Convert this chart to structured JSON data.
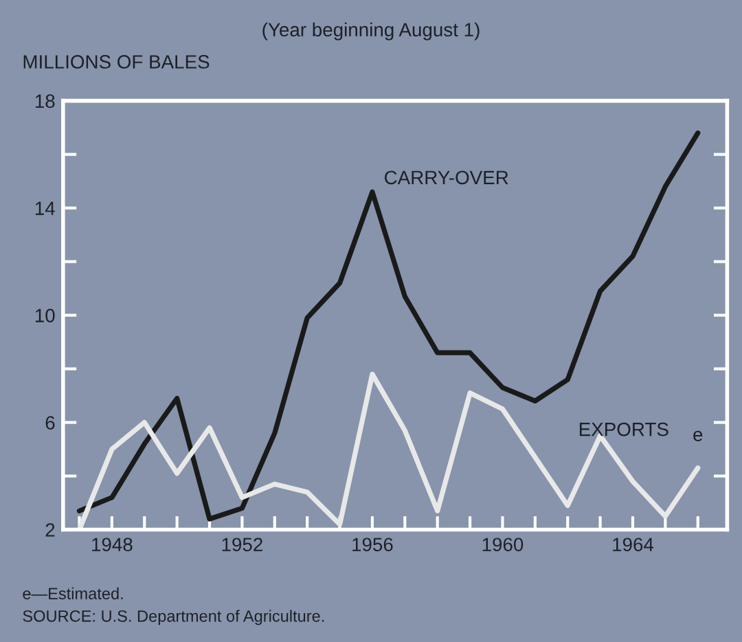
{
  "chart_data": {
    "type": "line",
    "title": "(Year beginning August 1)",
    "ylabel": "MILLIONS OF BALES",
    "x": [
      1947,
      1948,
      1949,
      1950,
      1951,
      1952,
      1953,
      1954,
      1955,
      1956,
      1957,
      1958,
      1959,
      1960,
      1961,
      1962,
      1963,
      1964,
      1965,
      1966
    ],
    "series": [
      {
        "name": "CARRY-OVER",
        "color": "#1a1a1a",
        "values": [
          2.7,
          3.2,
          5.2,
          6.9,
          2.4,
          2.8,
          5.6,
          9.9,
          11.2,
          14.6,
          10.7,
          8.6,
          8.6,
          7.3,
          6.8,
          7.6,
          10.9,
          12.2,
          14.8,
          16.8
        ]
      },
      {
        "name": "EXPORTS",
        "color": "#e8e8e8",
        "values": [
          2.0,
          5.0,
          6.0,
          4.1,
          5.8,
          3.2,
          3.7,
          3.4,
          2.2,
          7.8,
          5.7,
          2.7,
          7.1,
          6.5,
          4.7,
          2.9,
          5.5,
          3.8,
          2.5,
          4.3
        ]
      }
    ],
    "xlim": [
      1946.5,
      1966.9
    ],
    "ylim": [
      2,
      18
    ],
    "xticks": [
      {
        "value": 1947,
        "label": null
      },
      1948,
      {
        "value": 1949,
        "label": null
      },
      {
        "value": 1950,
        "label": null
      },
      {
        "value": 1951,
        "label": null
      },
      1952,
      {
        "value": 1953,
        "label": null
      },
      {
        "value": 1954,
        "label": null
      },
      {
        "value": 1955,
        "label": null
      },
      1956,
      {
        "value": 1957,
        "label": null
      },
      {
        "value": 1958,
        "label": null
      },
      {
        "value": 1959,
        "label": null
      },
      1960,
      {
        "value": 1961,
        "label": null
      },
      {
        "value": 1962,
        "label": null
      },
      {
        "value": 1963,
        "label": null
      },
      1964,
      {
        "value": 1965,
        "label": null
      },
      {
        "value": 1966,
        "label": null
      }
    ],
    "yticks": [
      2,
      {
        "value": 4,
        "label": null
      },
      6,
      {
        "value": 8,
        "label": null
      },
      10,
      {
        "value": 12,
        "label": null
      },
      14,
      {
        "value": 16,
        "label": null
      },
      18
    ],
    "grid": false,
    "legend": false,
    "marker": "none",
    "line_style": "solid",
    "annotations": [
      {
        "text": "e",
        "x": 1966,
        "y": 4.3
      },
      "e—Estimated.",
      "SOURCE: U.S. Department of Agriculture."
    ]
  }
}
